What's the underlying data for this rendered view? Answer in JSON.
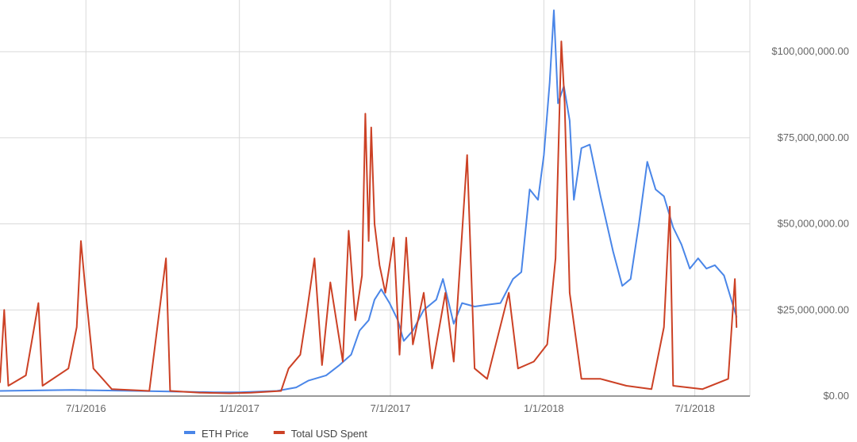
{
  "chart_data": {
    "type": "line",
    "title": "",
    "xlabel": "",
    "ylabel": "",
    "x_ticks": [
      {
        "date": "2016-07-01",
        "label": "7/1/2016"
      },
      {
        "date": "2017-01-01",
        "label": "1/1/2017"
      },
      {
        "date": "2017-07-01",
        "label": "7/1/2017"
      },
      {
        "date": "2018-01-01",
        "label": "1/1/2018"
      },
      {
        "date": "2018-07-01",
        "label": "7/1/2018"
      }
    ],
    "xlim": [
      "2016-03-20",
      "2018-09-05"
    ],
    "y_ticks": [
      {
        "value": 0,
        "label": "$0.00"
      },
      {
        "value": 25000000,
        "label": "$25,000,000.00"
      },
      {
        "value": 50000000,
        "label": "$50,000,000.00"
      },
      {
        "value": 75000000,
        "label": "$75,000,000.00"
      },
      {
        "value": 100000000,
        "label": "$100,000,000.00"
      }
    ],
    "ylim": [
      0,
      115000000
    ],
    "grid": true,
    "legend_position": "bottom",
    "series": [
      {
        "name": "ETH Price",
        "color": "#4a86e8",
        "points": [
          [
            "2016-03-20",
            1500000
          ],
          [
            "2016-06-15",
            1800000
          ],
          [
            "2016-07-01",
            1700000
          ],
          [
            "2016-09-01",
            1500000
          ],
          [
            "2016-12-01",
            1100000
          ],
          [
            "2017-01-01",
            1100000
          ],
          [
            "2017-02-15",
            1500000
          ],
          [
            "2017-03-10",
            2500000
          ],
          [
            "2017-03-25",
            4500000
          ],
          [
            "2017-04-15",
            6000000
          ],
          [
            "2017-05-01",
            9000000
          ],
          [
            "2017-05-15",
            12000000
          ],
          [
            "2017-05-25",
            19000000
          ],
          [
            "2017-06-05",
            22000000
          ],
          [
            "2017-06-12",
            28000000
          ],
          [
            "2017-06-20",
            31000000
          ],
          [
            "2017-06-30",
            27000000
          ],
          [
            "2017-07-10",
            22000000
          ],
          [
            "2017-07-17",
            16000000
          ],
          [
            "2017-07-28",
            19000000
          ],
          [
            "2017-08-10",
            25000000
          ],
          [
            "2017-08-25",
            28000000
          ],
          [
            "2017-09-02",
            34000000
          ],
          [
            "2017-09-15",
            21000000
          ],
          [
            "2017-09-25",
            27000000
          ],
          [
            "2017-10-10",
            26000000
          ],
          [
            "2017-10-25",
            26500000
          ],
          [
            "2017-11-10",
            27000000
          ],
          [
            "2017-11-25",
            34000000
          ],
          [
            "2017-12-05",
            36000000
          ],
          [
            "2017-12-15",
            60000000
          ],
          [
            "2017-12-25",
            57000000
          ],
          [
            "2018-01-01",
            70000000
          ],
          [
            "2018-01-08",
            91000000
          ],
          [
            "2018-01-13",
            112000000
          ],
          [
            "2018-01-18",
            85000000
          ],
          [
            "2018-01-25",
            90000000
          ],
          [
            "2018-02-01",
            80000000
          ],
          [
            "2018-02-06",
            57000000
          ],
          [
            "2018-02-15",
            72000000
          ],
          [
            "2018-02-25",
            73000000
          ],
          [
            "2018-03-10",
            58000000
          ],
          [
            "2018-03-25",
            42000000
          ],
          [
            "2018-04-05",
            32000000
          ],
          [
            "2018-04-15",
            34000000
          ],
          [
            "2018-04-25",
            50000000
          ],
          [
            "2018-05-05",
            68000000
          ],
          [
            "2018-05-15",
            60000000
          ],
          [
            "2018-05-25",
            58000000
          ],
          [
            "2018-06-05",
            49000000
          ],
          [
            "2018-06-15",
            44000000
          ],
          [
            "2018-06-25",
            37000000
          ],
          [
            "2018-07-05",
            40000000
          ],
          [
            "2018-07-15",
            37000000
          ],
          [
            "2018-07-25",
            38000000
          ],
          [
            "2018-08-05",
            35000000
          ],
          [
            "2018-08-15",
            27000000
          ],
          [
            "2018-08-20",
            23000000
          ]
        ]
      },
      {
        "name": "Total USD Spent",
        "color": "#cc4125",
        "points": [
          [
            "2016-03-20",
            4000000
          ],
          [
            "2016-03-25",
            25000000
          ],
          [
            "2016-03-30",
            3000000
          ],
          [
            "2016-04-20",
            6000000
          ],
          [
            "2016-05-05",
            27000000
          ],
          [
            "2016-05-10",
            3000000
          ],
          [
            "2016-06-10",
            8000000
          ],
          [
            "2016-06-20",
            20000000
          ],
          [
            "2016-06-25",
            45000000
          ],
          [
            "2016-06-30",
            32000000
          ],
          [
            "2016-07-10",
            8000000
          ],
          [
            "2016-08-01",
            2000000
          ],
          [
            "2016-09-15",
            1500000
          ],
          [
            "2016-10-05",
            40000000
          ],
          [
            "2016-10-10",
            1500000
          ],
          [
            "2016-11-15",
            1000000
          ],
          [
            "2016-12-20",
            800000
          ],
          [
            "2017-01-15",
            1000000
          ],
          [
            "2017-02-20",
            1500000
          ],
          [
            "2017-03-01",
            8000000
          ],
          [
            "2017-03-15",
            12000000
          ],
          [
            "2017-03-22",
            23000000
          ],
          [
            "2017-04-01",
            40000000
          ],
          [
            "2017-04-10",
            9000000
          ],
          [
            "2017-04-20",
            33000000
          ],
          [
            "2017-05-05",
            10000000
          ],
          [
            "2017-05-12",
            48000000
          ],
          [
            "2017-05-20",
            22000000
          ],
          [
            "2017-05-28",
            35000000
          ],
          [
            "2017-06-01",
            82000000
          ],
          [
            "2017-06-05",
            45000000
          ],
          [
            "2017-06-08",
            78000000
          ],
          [
            "2017-06-12",
            50000000
          ],
          [
            "2017-06-18",
            38000000
          ],
          [
            "2017-06-25",
            30000000
          ],
          [
            "2017-07-05",
            46000000
          ],
          [
            "2017-07-12",
            12000000
          ],
          [
            "2017-07-20",
            46000000
          ],
          [
            "2017-07-28",
            15000000
          ],
          [
            "2017-08-10",
            30000000
          ],
          [
            "2017-08-20",
            8000000
          ],
          [
            "2017-09-05",
            30000000
          ],
          [
            "2017-09-15",
            10000000
          ],
          [
            "2017-10-01",
            70000000
          ],
          [
            "2017-10-10",
            8000000
          ],
          [
            "2017-10-25",
            5000000
          ],
          [
            "2017-11-20",
            30000000
          ],
          [
            "2017-12-01",
            8000000
          ],
          [
            "2017-12-20",
            10000000
          ],
          [
            "2018-01-05",
            15000000
          ],
          [
            "2018-01-15",
            40000000
          ],
          [
            "2018-01-22",
            103000000
          ],
          [
            "2018-01-26",
            85000000
          ],
          [
            "2018-02-01",
            30000000
          ],
          [
            "2018-02-15",
            5000000
          ],
          [
            "2018-03-10",
            5000000
          ],
          [
            "2018-04-10",
            3000000
          ],
          [
            "2018-05-10",
            2000000
          ],
          [
            "2018-05-25",
            20000000
          ],
          [
            "2018-06-01",
            55000000
          ],
          [
            "2018-06-05",
            3000000
          ],
          [
            "2018-07-10",
            2000000
          ],
          [
            "2018-08-10",
            5000000
          ],
          [
            "2018-08-18",
            34000000
          ],
          [
            "2018-08-20",
            20000000
          ]
        ]
      }
    ]
  }
}
